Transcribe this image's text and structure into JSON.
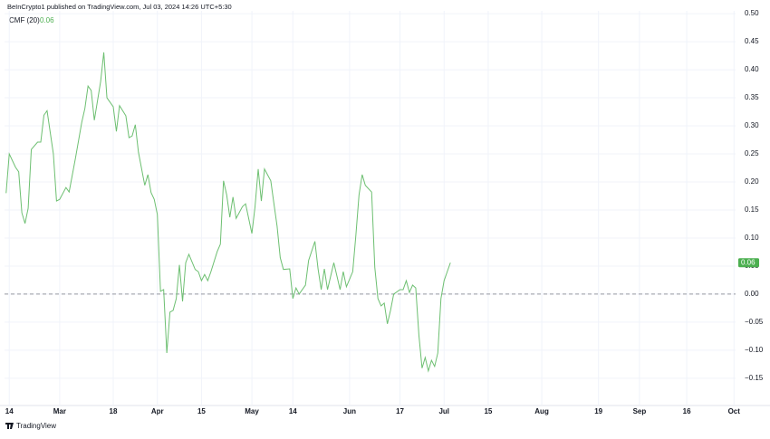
{
  "header": "BeInCrypto1 published on TradingView.com, Jul 03, 2024 14:26 UTC+5:30",
  "footer": "TradingView",
  "chart_data": {
    "type": "line",
    "x": [
      -1,
      0,
      2,
      3,
      4,
      5,
      6,
      7,
      9,
      10,
      11,
      12,
      14,
      15,
      16,
      18,
      19,
      21,
      23,
      24,
      25,
      26,
      27,
      29,
      30,
      31,
      33,
      34,
      35,
      37,
      38,
      39,
      40,
      41,
      43,
      44,
      45,
      46,
      47,
      48,
      49,
      50,
      51,
      52,
      53,
      54,
      55,
      56,
      57,
      59,
      60,
      61,
      62,
      63,
      64,
      66,
      67,
      68,
      69,
      70,
      71,
      72,
      74,
      75,
      77,
      78,
      79,
      80,
      81,
      83,
      84,
      85,
      86,
      87,
      89,
      90,
      91,
      92,
      93,
      94,
      95,
      97,
      98,
      99,
      100,
      101,
      103,
      104,
      105,
      106,
      107,
      109,
      110,
      111,
      112,
      113,
      115,
      116,
      117,
      118,
      119,
      120,
      121,
      122,
      124,
      125,
      126,
      127,
      128,
      129,
      130,
      131,
      132,
      133,
      134,
      135,
      136,
      137,
      138,
      139,
      140
    ],
    "series": [
      {
        "name": "CMF (20)",
        "value_label": "0.06",
        "color": "#6dbf71",
        "values": [
          0.18,
          0.25,
          0.226,
          0.218,
          0.145,
          0.126,
          0.153,
          0.258,
          0.271,
          0.271,
          0.319,
          0.327,
          0.25,
          0.166,
          0.169,
          0.19,
          0.182,
          0.242,
          0.306,
          0.331,
          0.371,
          0.363,
          0.31,
          0.379,
          0.431,
          0.35,
          0.334,
          0.29,
          0.336,
          0.318,
          0.279,
          0.282,
          0.302,
          0.253,
          0.194,
          0.213,
          0.181,
          0.169,
          0.142,
          0.005,
          0.008,
          -0.105,
          -0.032,
          -0.029,
          -0.008,
          0.052,
          -0.013,
          0.056,
          0.071,
          0.044,
          0.04,
          0.024,
          0.035,
          0.024,
          0.04,
          0.076,
          0.089,
          0.202,
          0.177,
          0.137,
          0.173,
          0.135,
          0.156,
          0.161,
          0.108,
          0.156,
          0.223,
          0.166,
          0.223,
          0.202,
          0.161,
          0.121,
          0.065,
          0.044,
          0.045,
          -0.008,
          0.011,
          0.0,
          0.008,
          0.016,
          0.06,
          0.094,
          0.045,
          0.008,
          0.045,
          0.008,
          0.056,
          0.032,
          0.008,
          0.04,
          0.013,
          0.04,
          0.105,
          0.177,
          0.213,
          0.194,
          0.182,
          0.048,
          -0.008,
          -0.021,
          -0.016,
          -0.053,
          -0.029,
          0.0,
          0.008,
          0.008,
          0.024,
          0.003,
          0.016,
          0.011,
          -0.073,
          -0.132,
          -0.113,
          -0.137,
          -0.118,
          -0.129,
          -0.105,
          -0.008,
          0.024,
          0.04,
          0.056
        ]
      }
    ],
    "xlim": [
      -1.5,
      230.5
    ],
    "xticks": [
      {
        "value": 0,
        "label": "14"
      },
      {
        "value": 16,
        "label": "Mar"
      },
      {
        "value": 33,
        "label": "18"
      },
      {
        "value": 47,
        "label": "Apr"
      },
      {
        "value": 61,
        "label": "15"
      },
      {
        "value": 77,
        "label": "May"
      },
      {
        "value": 90,
        "label": "14"
      },
      {
        "value": 108,
        "label": "Jun"
      },
      {
        "value": 124,
        "label": "17"
      },
      {
        "value": 138,
        "label": "Jul"
      },
      {
        "value": 152,
        "label": "15"
      },
      {
        "value": 169,
        "label": "Aug"
      },
      {
        "value": 187,
        "label": "19"
      },
      {
        "value": 200,
        "label": "Sep"
      },
      {
        "value": 215,
        "label": "16"
      },
      {
        "value": 230,
        "label": "Oct"
      }
    ],
    "ylim": [
      -0.197,
      0.505
    ],
    "yticks": [
      {
        "value": 0.5,
        "label": "0.50"
      },
      {
        "value": 0.45,
        "label": "0.45"
      },
      {
        "value": 0.4,
        "label": "0.40"
      },
      {
        "value": 0.35,
        "label": "0.35"
      },
      {
        "value": 0.3,
        "label": "0.30"
      },
      {
        "value": 0.25,
        "label": "0.25"
      },
      {
        "value": 0.2,
        "label": "0.20"
      },
      {
        "value": 0.15,
        "label": "0.15"
      },
      {
        "value": 0.1,
        "label": "0.10"
      },
      {
        "value": 0.05,
        "label": "0.05"
      },
      {
        "value": 0,
        "label": "0.00"
      },
      {
        "value": -0.05,
        "label": "−0.05"
      },
      {
        "value": -0.1,
        "label": "−0.10"
      },
      {
        "value": -0.15,
        "label": "−0.15"
      }
    ],
    "hline": 0,
    "grid": true
  }
}
